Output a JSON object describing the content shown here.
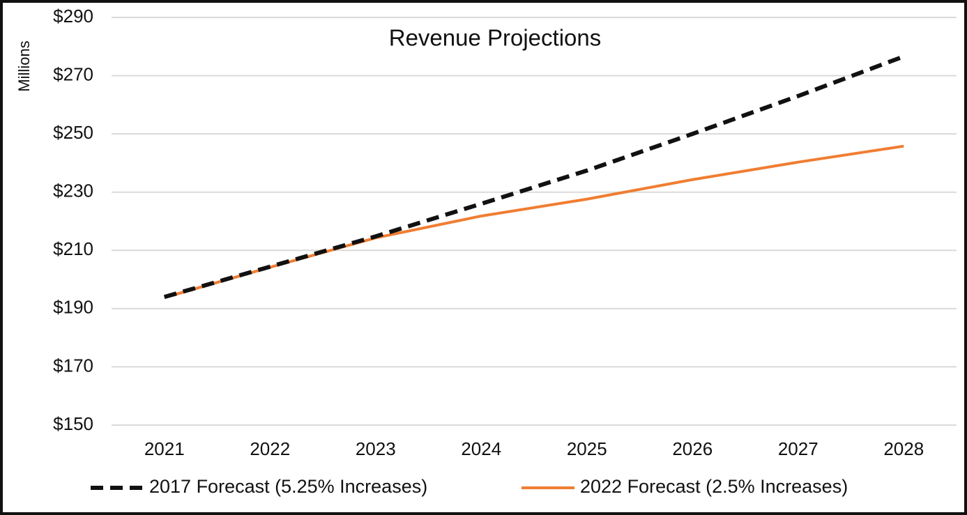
{
  "chart_data": {
    "type": "line",
    "title": "Revenue Projections",
    "y_label": "Millions",
    "categories": [
      "2021",
      "2022",
      "2023",
      "2024",
      "2025",
      "2026",
      "2027",
      "2028"
    ],
    "series": [
      {
        "name": "2017 Forecast (5.25% Increases)",
        "color": "#111111",
        "dashed": true,
        "values": [
          194,
          204.4,
          214.8,
          226,
          237.4,
          250,
          263,
          276.6
        ]
      },
      {
        "name": "2022 Forecast (2.5% Increases)",
        "color": "#f07d32",
        "dashed": false,
        "values": [
          193.8,
          204.2,
          214.3,
          221.8,
          227.6,
          234.3,
          240.3,
          245.8
        ]
      }
    ],
    "ylim": [
      150,
      290
    ],
    "yticks": [
      {
        "value": 150,
        "label": "$150"
      },
      {
        "value": 170,
        "label": "$170"
      },
      {
        "value": 190,
        "label": "$190"
      },
      {
        "value": 210,
        "label": "$210"
      },
      {
        "value": 230,
        "label": "$230"
      },
      {
        "value": 250,
        "label": "$250"
      },
      {
        "value": 270,
        "label": "$270"
      },
      {
        "value": 290,
        "label": "$290"
      }
    ],
    "grid": true,
    "legend": "bottom"
  }
}
